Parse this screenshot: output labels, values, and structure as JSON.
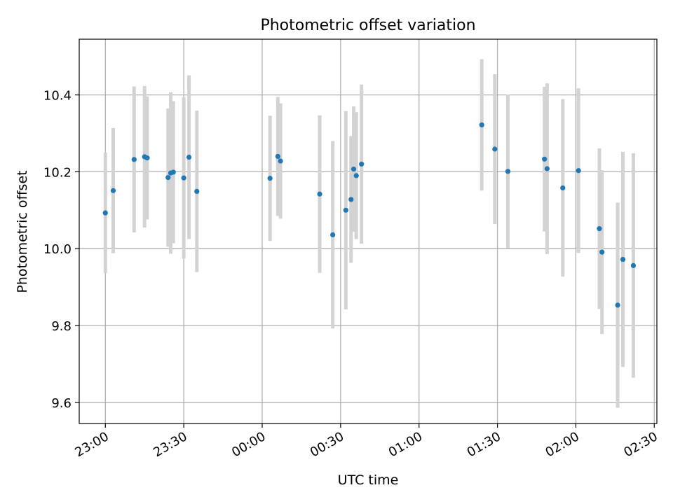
{
  "chart_data": {
    "type": "scatter",
    "title": "Photometric offset variation",
    "xlabel": "UTC time",
    "ylabel": "Photometric offset",
    "x_ticks": [
      "23:00",
      "23:30",
      "00:00",
      "00:30",
      "01:00",
      "01:30",
      "02:00",
      "02:30"
    ],
    "y_ticks": [
      "9.6",
      "9.8",
      "10.0",
      "10.2",
      "10.4"
    ],
    "ylim": [
      9.545,
      10.545
    ],
    "xlim": [
      "22:50",
      "02:31"
    ],
    "grid": true,
    "legend": "none",
    "colors": {
      "points": "#1f77b4",
      "errorbars": "#d3d3d3",
      "grid": "#b0b0b0"
    },
    "series": [
      {
        "points": [
          {
            "x": "23:00",
            "y": 10.093,
            "err": 0.157
          },
          {
            "x": "23:03",
            "y": 10.151,
            "err": 0.163
          },
          {
            "x": "23:11",
            "y": 10.232,
            "err": 0.19
          },
          {
            "x": "23:15",
            "y": 10.239,
            "err": 0.184
          },
          {
            "x": "23:16",
            "y": 10.236,
            "err": 0.16
          },
          {
            "x": "23:24",
            "y": 10.185,
            "err": 0.18
          },
          {
            "x": "23:25",
            "y": 10.197,
            "err": 0.21
          },
          {
            "x": "23:26",
            "y": 10.199,
            "err": 0.185
          },
          {
            "x": "23:30",
            "y": 10.184,
            "err": 0.21
          },
          {
            "x": "23:32",
            "y": 10.238,
            "err": 0.213
          },
          {
            "x": "23:35",
            "y": 10.149,
            "err": 0.21
          },
          {
            "x": "00:03",
            "y": 10.183,
            "err": 0.163
          },
          {
            "x": "00:06",
            "y": 10.24,
            "err": 0.155
          },
          {
            "x": "00:07",
            "y": 10.228,
            "err": 0.15
          },
          {
            "x": "00:22",
            "y": 10.142,
            "err": 0.205
          },
          {
            "x": "00:27",
            "y": 10.036,
            "err": 0.244
          },
          {
            "x": "00:32",
            "y": 10.1,
            "err": 0.258
          },
          {
            "x": "00:34",
            "y": 10.128,
            "err": 0.165
          },
          {
            "x": "00:35",
            "y": 10.207,
            "err": 0.163
          },
          {
            "x": "00:36",
            "y": 10.19,
            "err": 0.165
          },
          {
            "x": "00:38",
            "y": 10.22,
            "err": 0.207
          },
          {
            "x": "01:24",
            "y": 10.322,
            "err": 0.171
          },
          {
            "x": "01:29",
            "y": 10.259,
            "err": 0.195
          },
          {
            "x": "01:34",
            "y": 10.201,
            "err": 0.2
          },
          {
            "x": "01:48",
            "y": 10.233,
            "err": 0.188
          },
          {
            "x": "01:49",
            "y": 10.208,
            "err": 0.222
          },
          {
            "x": "01:55",
            "y": 10.158,
            "err": 0.231
          },
          {
            "x": "02:01",
            "y": 10.203,
            "err": 0.214
          },
          {
            "x": "02:09",
            "y": 10.052,
            "err": 0.209
          },
          {
            "x": "02:10",
            "y": 9.991,
            "err": 0.213
          },
          {
            "x": "02:16",
            "y": 9.853,
            "err": 0.267
          },
          {
            "x": "02:18",
            "y": 9.972,
            "err": 0.28
          },
          {
            "x": "02:22",
            "y": 9.956,
            "err": 0.292
          }
        ]
      }
    ]
  }
}
